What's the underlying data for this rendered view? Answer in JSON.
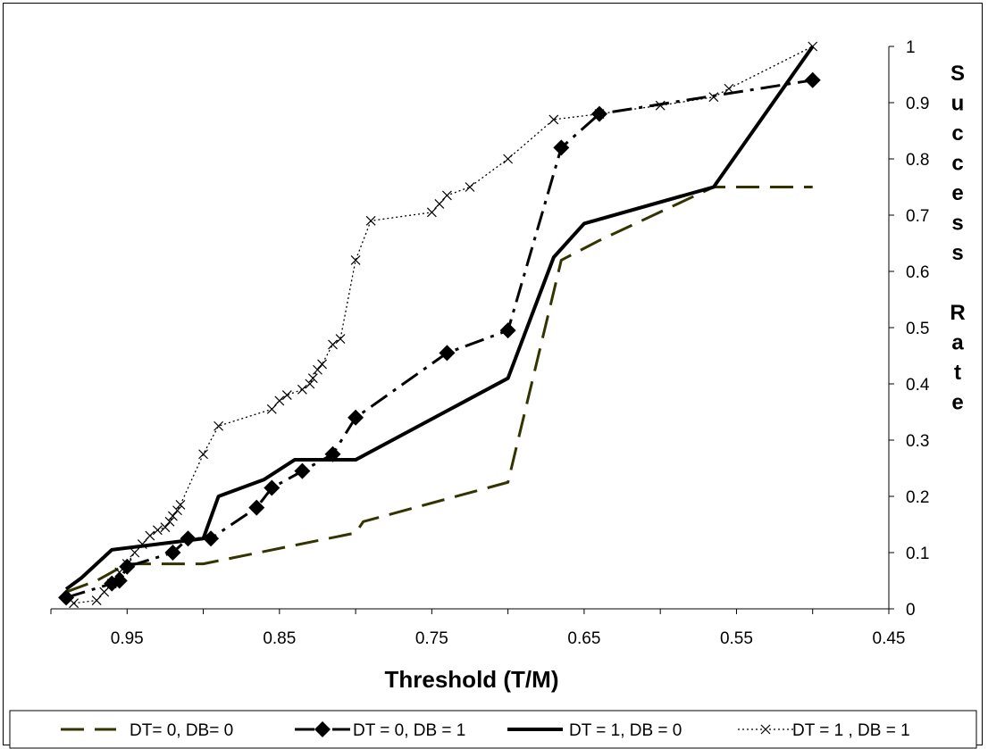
{
  "chart_data": {
    "type": "line",
    "xlabel": "Threshold (T/M)",
    "ylabel": "Success Rate",
    "x_reversed": true,
    "xlim": [
      0.45,
      1.0
    ],
    "ylim": [
      0,
      1
    ],
    "x_ticks": [
      0.95,
      0.85,
      0.75,
      0.65,
      0.55,
      0.45
    ],
    "x_tick_labels": [
      "0.95",
      "0.85",
      "0.75",
      "0.65",
      "0.55",
      "0.45"
    ],
    "y_ticks": [
      0,
      0.1,
      0.2,
      0.3,
      0.4,
      0.5,
      0.6,
      0.7,
      0.8,
      0.9,
      1
    ],
    "y_tick_labels": [
      "0",
      "0.1",
      "0.2",
      "0.3",
      "0.4",
      "0.5",
      "0.6",
      "0.7",
      "0.8",
      "0.9",
      "1"
    ],
    "y_axis_position": "right",
    "grid": false,
    "legend_position": "bottom",
    "series": [
      {
        "name": "DT= 0, DB= 0",
        "color": "#333300",
        "style": "long-dash",
        "marker": "none",
        "x": [
          0.99,
          0.97,
          0.95,
          0.9,
          0.8,
          0.795,
          0.7,
          0.665,
          0.64,
          0.565,
          0.5
        ],
        "y": [
          0.03,
          0.05,
          0.08,
          0.08,
          0.135,
          0.155,
          0.225,
          0.62,
          0.655,
          0.75,
          0.75
        ]
      },
      {
        "name": "DT = 0, DB = 1",
        "color": "#000000",
        "style": "dash-dot",
        "marker": "diamond",
        "x": [
          0.99,
          0.96,
          0.955,
          0.95,
          0.92,
          0.91,
          0.895,
          0.865,
          0.855,
          0.835,
          0.815,
          0.8,
          0.74,
          0.7,
          0.665,
          0.64,
          0.5
        ],
        "y": [
          0.02,
          0.045,
          0.05,
          0.075,
          0.1,
          0.125,
          0.125,
          0.18,
          0.215,
          0.245,
          0.275,
          0.34,
          0.455,
          0.495,
          0.82,
          0.88,
          0.94
        ]
      },
      {
        "name": "DT = 1, DB = 0",
        "color": "#000000",
        "style": "solid",
        "marker": "none",
        "x": [
          0.99,
          0.98,
          0.96,
          0.9,
          0.89,
          0.86,
          0.84,
          0.8,
          0.7,
          0.67,
          0.65,
          0.565,
          0.5
        ],
        "y": [
          0.035,
          0.055,
          0.105,
          0.125,
          0.2,
          0.23,
          0.265,
          0.265,
          0.41,
          0.625,
          0.685,
          0.75,
          1.0
        ]
      },
      {
        "name": "DT = 1 , DB = 1",
        "color": "#000000",
        "style": "dotted",
        "marker": "x",
        "x": [
          0.985,
          0.97,
          0.965,
          0.96,
          0.955,
          0.95,
          0.945,
          0.94,
          0.935,
          0.93,
          0.925,
          0.922,
          0.92,
          0.917,
          0.915,
          0.9,
          0.89,
          0.855,
          0.85,
          0.845,
          0.835,
          0.83,
          0.828,
          0.825,
          0.822,
          0.815,
          0.81,
          0.8,
          0.79,
          0.75,
          0.745,
          0.74,
          0.725,
          0.7,
          0.67,
          0.64,
          0.6,
          0.565,
          0.555,
          0.5
        ],
        "y": [
          0.01,
          0.015,
          0.03,
          0.045,
          0.065,
          0.08,
          0.1,
          0.115,
          0.13,
          0.14,
          0.145,
          0.155,
          0.165,
          0.175,
          0.185,
          0.275,
          0.325,
          0.355,
          0.37,
          0.38,
          0.39,
          0.4,
          0.41,
          0.425,
          0.435,
          0.47,
          0.48,
          0.62,
          0.69,
          0.705,
          0.72,
          0.735,
          0.75,
          0.8,
          0.87,
          0.88,
          0.895,
          0.91,
          0.925,
          1.0
        ]
      }
    ]
  }
}
